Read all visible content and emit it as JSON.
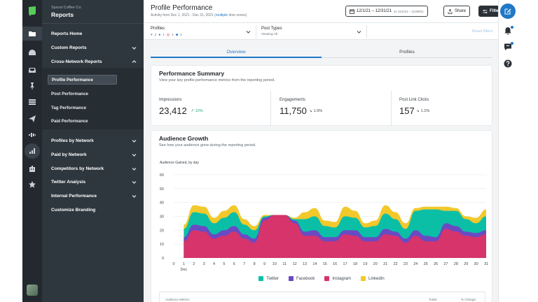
{
  "brand_color": "#59cb59",
  "rail": {
    "icons": [
      "folder-icon",
      "dashboard-icon",
      "inbox-icon",
      "pin-icon",
      "list-icon",
      "send-icon",
      "listening-icon",
      "reports-icon",
      "bot-icon",
      "star-icon"
    ],
    "active": "reports-icon"
  },
  "nav": {
    "org": "Sprout Coffee Co.",
    "title": "Reports",
    "items": {
      "reports_home": "Reports Home",
      "custom_reports": "Custom Reports",
      "cross_network": "Cross-Network Reports",
      "profiles_by_network": "Profiles by Network",
      "paid_by_network": "Paid by Network",
      "competitors_by_network": "Competitors by Network",
      "twitter_analysis": "Twitter Analysis",
      "internal_performance": "Internal Performance",
      "customize_branding": "Customize Branding"
    },
    "sub_items": {
      "profile_performance": "Profile Performance",
      "post_performance": "Post Performance",
      "tag_performance": "Tag Performance",
      "paid_performance": "Paid Performance"
    },
    "active_sub_item": "Profile Performance"
  },
  "header": {
    "title": "Profile Performance",
    "subtitle_prefix": "Activity from Dec 1, 2021 - Dec 31, 2021 (",
    "subtitle_link": "multiple",
    "subtitle_suffix": " time zones)",
    "date_range": "12/1/21 – 12/31/21",
    "compare_range": "vs 11/1/21 – 11/30/21",
    "share_label": "Share",
    "filters_label": "Filters"
  },
  "filters": {
    "profiles_label": "Profiles",
    "profiles_counts": {
      "twitter": "2",
      "facebook": "1",
      "instagram": "1",
      "linkedin": "1"
    },
    "post_types_label": "Post Types",
    "post_types_value": "Viewing All",
    "reset_label": "Reset filters"
  },
  "tabs": {
    "overview": "Overview",
    "profiles": "Profiles",
    "active": "Overview"
  },
  "summary": {
    "title": "Performance Summary",
    "subtitle": "View your key profile performance metrics from the reporting period.",
    "metrics": [
      {
        "label": "Impressions",
        "value": "23,412",
        "delta": "10%",
        "direction": "up"
      },
      {
        "label": "Engagements",
        "value": "11,750",
        "delta": "1.5%",
        "direction": "down"
      },
      {
        "label": "Post Link Clicks",
        "value": "157",
        "delta": "1.1%",
        "direction": "down"
      }
    ]
  },
  "growth": {
    "title": "Audience Growth",
    "subtitle": "See how your audience grew during the reporting period.",
    "table_headers": {
      "metric": "Audience Metrics",
      "totals": "Totals",
      "change": "% Change"
    }
  },
  "chart_data": {
    "type": "area",
    "stacked": true,
    "ylabel": "Audience Gained, by day",
    "xlabel": "",
    "month_label": "Dec",
    "ylim": [
      0,
      60
    ],
    "yticks": [
      0,
      10,
      20,
      30,
      40,
      50,
      60
    ],
    "x": [
      1,
      2,
      3,
      4,
      5,
      6,
      7,
      8,
      9,
      10,
      11,
      12,
      13,
      14,
      15,
      16,
      17,
      18,
      19,
      20,
      21,
      22,
      23,
      24,
      25,
      26,
      27,
      28,
      29,
      30,
      31
    ],
    "x_ticks": [
      "0",
      "1",
      "2",
      "3",
      "4",
      "5",
      "6",
      "7",
      "8",
      "9",
      "10",
      "11",
      "12",
      "13",
      "14",
      "15",
      "16",
      "17",
      "18",
      "19",
      "20",
      "21",
      "22",
      "23",
      "24",
      "25",
      "26",
      "27",
      "28",
      "29",
      "30",
      "31"
    ],
    "grid": true,
    "legend_position": "bottom",
    "series": [
      {
        "name": "Instagram",
        "color": "#d6346b",
        "values": [
          12,
          20,
          19,
          14,
          16,
          19,
          14,
          11,
          27,
          31,
          31,
          25,
          16,
          16,
          12,
          12,
          17,
          16,
          12,
          12,
          17,
          16,
          11,
          16,
          12,
          12,
          21,
          19,
          16,
          15,
          17
        ]
      },
      {
        "name": "Facebook",
        "color": "#6a4ac3",
        "values": [
          3,
          4,
          4,
          3,
          4,
          4,
          3,
          3,
          2,
          0,
          0,
          2,
          3,
          4,
          3,
          3,
          3,
          4,
          3,
          3,
          4,
          3,
          3,
          4,
          4,
          3,
          4,
          4,
          3,
          3,
          3
        ]
      },
      {
        "name": "Twitter",
        "color": "#0bbfa7",
        "values": [
          6,
          9,
          9,
          8,
          9,
          10,
          7,
          6,
          1,
          0,
          0,
          1,
          9,
          10,
          8,
          7,
          10,
          9,
          7,
          8,
          11,
          9,
          7,
          14,
          19,
          20,
          9,
          11,
          9,
          7,
          10
        ]
      },
      {
        "name": "LinkedIn",
        "color": "#f2c82b",
        "values": [
          3,
          5,
          5,
          4,
          5,
          5,
          4,
          3,
          1,
          0,
          0,
          1,
          5,
          6,
          4,
          4,
          7,
          5,
          3,
          4,
          6,
          5,
          4,
          2,
          2,
          2,
          3,
          2,
          2,
          4,
          5
        ]
      }
    ]
  },
  "legend_order": [
    "Twitter",
    "Facebook",
    "Instagram",
    "LinkedIn"
  ]
}
